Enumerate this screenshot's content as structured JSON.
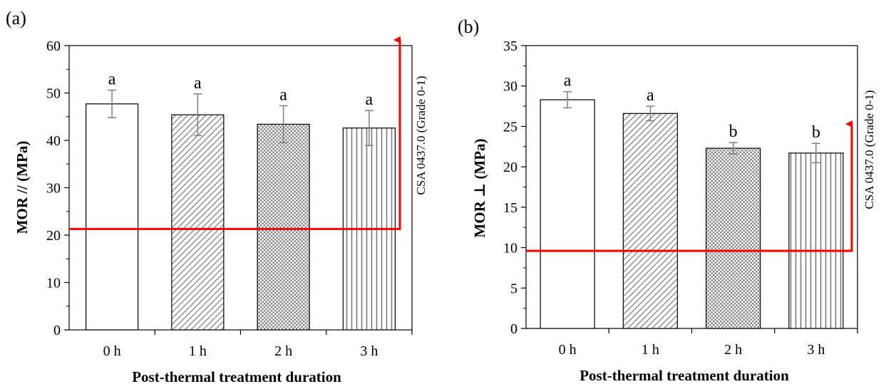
{
  "colors": {
    "reference": "#ff0000",
    "axis": "#000000",
    "error_bar": "#7f7f7f",
    "bar_fill": "#ffffff"
  },
  "chart_data": [
    {
      "panel_label": "(a)",
      "type": "bar",
      "categories": [
        "0 h",
        "1 h",
        "2 h",
        "3 h"
      ],
      "values": [
        47.7,
        45.4,
        43.4,
        42.6
      ],
      "error": [
        2.9,
        4.4,
        3.9,
        3.7
      ],
      "significance_letters": [
        "a",
        "a",
        "a",
        "a"
      ],
      "patterns": [
        "none",
        "diagonal-hatch",
        "dotted-crosshatch",
        "vertical-lines"
      ],
      "xlabel": "Post-thermal treatment duration",
      "ylabel": "MOR // (MPa)",
      "ylim": [
        0,
        60
      ],
      "yticks": [
        "0",
        "10",
        "20",
        "30",
        "40",
        "50",
        "60"
      ],
      "reference_line": {
        "value": 21.3,
        "label": "CSA 0437.0 (Grade 0-1)"
      },
      "grid": false,
      "legend": "none"
    },
    {
      "panel_label": "(b)",
      "type": "bar",
      "categories": [
        "0 h",
        "1 h",
        "2 h",
        "3 h"
      ],
      "values": [
        28.3,
        26.6,
        22.3,
        21.7
      ],
      "error": [
        1.0,
        0.9,
        0.7,
        1.2
      ],
      "significance_letters": [
        "a",
        "a",
        "b",
        "b"
      ],
      "patterns": [
        "none",
        "diagonal-hatch",
        "dotted-crosshatch",
        "vertical-lines"
      ],
      "xlabel": "Post-thermal treatment duration",
      "ylabel": "MOR ⊥ (MPa)",
      "ylim": [
        0,
        35
      ],
      "yticks": [
        "0",
        "5",
        "10",
        "15",
        "20",
        "25",
        "30",
        "35"
      ],
      "reference_line": {
        "value": 9.6,
        "label": "CSA 0437.0 (Grade 0-1)"
      },
      "grid": false,
      "legend": "none"
    }
  ]
}
